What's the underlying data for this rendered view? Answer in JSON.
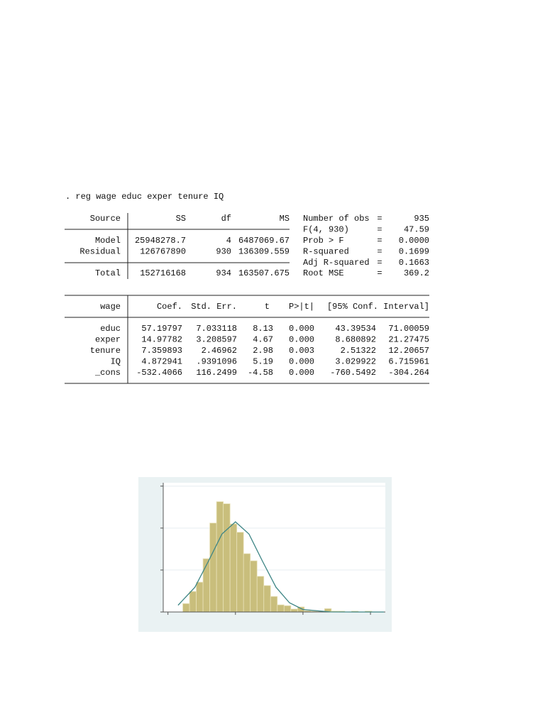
{
  "command": ". reg wage educ exper tenure IQ",
  "anova": {
    "header": [
      "Source",
      "SS",
      "df",
      "MS"
    ],
    "rows": [
      [
        "Model",
        "25948278.7",
        "4",
        "6487069.67"
      ],
      [
        "Residual",
        "126767890",
        "930",
        "136309.559"
      ]
    ],
    "total": [
      "Total",
      "152716168",
      "934",
      "163507.675"
    ]
  },
  "stats": [
    [
      "Number of obs",
      "=",
      "935"
    ],
    [
      "F(4, 930)",
      "=",
      "47.59"
    ],
    [
      "Prob > F",
      "=",
      "0.0000"
    ],
    [
      "R-squared",
      "=",
      "0.1699"
    ],
    [
      "Adj R-squared",
      "=",
      "0.1663"
    ],
    [
      "Root MSE",
      "=",
      "369.2"
    ]
  ],
  "coef": {
    "header": [
      "wage",
      "Coef.",
      "Std. Err.",
      "t",
      "P>|t|",
      "[95% Conf. Interval]"
    ],
    "rows": [
      [
        "educ",
        "57.19797",
        "7.033118",
        "8.13",
        "0.000",
        "43.39534",
        "71.00059"
      ],
      [
        "exper",
        "14.97782",
        "3.208597",
        "4.67",
        "0.000",
        "8.680892",
        "21.27475"
      ],
      [
        "tenure",
        "7.359893",
        "2.46962",
        "2.98",
        "0.003",
        "2.51322",
        "12.20657"
      ],
      [
        "IQ",
        "4.872941",
        ".9391096",
        "5.19",
        "0.000",
        "3.029922",
        "6.715961"
      ],
      [
        "_cons",
        "-532.4066",
        "116.2499",
        "-4.58",
        "0.000",
        "-760.5492",
        "-304.264"
      ]
    ]
  },
  "chart_data": {
    "type": "histogram",
    "bins": [
      0.22,
      0.32,
      0.42,
      0.52,
      0.62,
      0.72,
      0.82,
      0.92,
      1.02,
      1.12,
      1.22,
      1.32,
      1.42,
      1.52,
      1.62,
      1.72,
      1.82,
      1.92,
      2.02,
      2.12,
      2.22,
      2.32,
      2.42,
      2.52,
      2.62,
      2.72,
      2.82,
      2.92,
      3.02
    ],
    "values": [
      0.2,
      0.49,
      0.71,
      1.27,
      2.12,
      2.63,
      2.58,
      2.1,
      1.9,
      1.39,
      1.22,
      0.85,
      0.63,
      0.37,
      0.17,
      0.15,
      0.07,
      0.12,
      0.03,
      0.02,
      0.02,
      0.08,
      0.02,
      0.02,
      0,
      0.02,
      0,
      0.02
    ],
    "color": "#c9be7c",
    "curve": {
      "color": "#3d8585",
      "x": [
        0.15,
        0.4,
        0.6,
        0.8,
        1.0,
        1.2,
        1.4,
        1.6,
        1.8,
        2.0,
        2.4,
        2.8,
        3.2
      ],
      "values": [
        0.16,
        0.59,
        1.21,
        1.86,
        2.15,
        1.86,
        1.21,
        0.59,
        0.22,
        0.06,
        0.002,
        0,
        0
      ]
    },
    "xlim": [
      -0.07,
      3.22
    ],
    "ylim": [
      0,
      3.08
    ],
    "xticks": [
      0,
      1,
      2,
      3
    ],
    "yticks": [
      0,
      1,
      2,
      3
    ],
    "grid": true
  }
}
